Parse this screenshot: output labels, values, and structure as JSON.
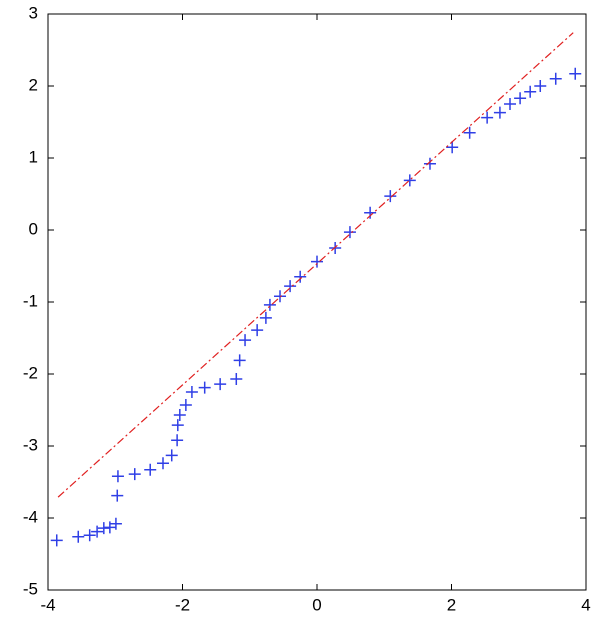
{
  "chart_data": {
    "type": "scatter",
    "series": [
      {
        "type": "scatter",
        "color": "#2f3fe6",
        "x": [
          -3.87,
          -3.55,
          -3.38,
          -3.27,
          -3.17,
          -3.08,
          -2.99,
          -2.97,
          -2.96,
          -2.71,
          -2.48,
          -2.29,
          -2.16,
          -2.08,
          -2.07,
          -2.04,
          -1.95,
          -1.86,
          -1.67,
          -1.44,
          -1.2,
          -1.15,
          -1.07,
          -0.89,
          -0.76,
          -0.7,
          -0.55,
          -0.4,
          -0.25,
          0,
          0.27,
          0.49,
          0.79,
          1.09,
          1.38,
          1.68,
          2.01,
          2.27,
          2.53,
          2.72,
          2.87,
          3.02,
          3.17,
          3.32,
          3.55,
          3.84
        ],
        "values": [
          -4.31,
          -4.26,
          -4.24,
          -4.19,
          -4.14,
          -4.13,
          -4.08,
          -3.69,
          -3.42,
          -3.39,
          -3.33,
          -3.24,
          -3.13,
          -2.92,
          -2.71,
          -2.57,
          -2.43,
          -2.25,
          -2.19,
          -2.14,
          -2.07,
          -1.81,
          -1.53,
          -1.39,
          -1.22,
          -1.04,
          -0.92,
          -0.78,
          -0.65,
          -0.44,
          -0.25,
          -0.03,
          0.24,
          0.47,
          0.69,
          0.92,
          1.15,
          1.35,
          1.56,
          1.63,
          1.75,
          1.83,
          1.92,
          2.0,
          2.1,
          2.17
        ]
      },
      {
        "type": "line",
        "color": "#e02020",
        "x": [
          -3.85,
          3.81
        ],
        "values": [
          -3.71,
          2.74
        ]
      }
    ],
    "xlim": [
      -4,
      4
    ],
    "xticks": [
      -4,
      -2,
      0,
      2,
      4
    ],
    "ylim": [
      -5,
      3
    ],
    "yticks": [
      -5,
      -4,
      -3,
      -2,
      -1,
      0,
      1,
      2,
      3
    ]
  }
}
